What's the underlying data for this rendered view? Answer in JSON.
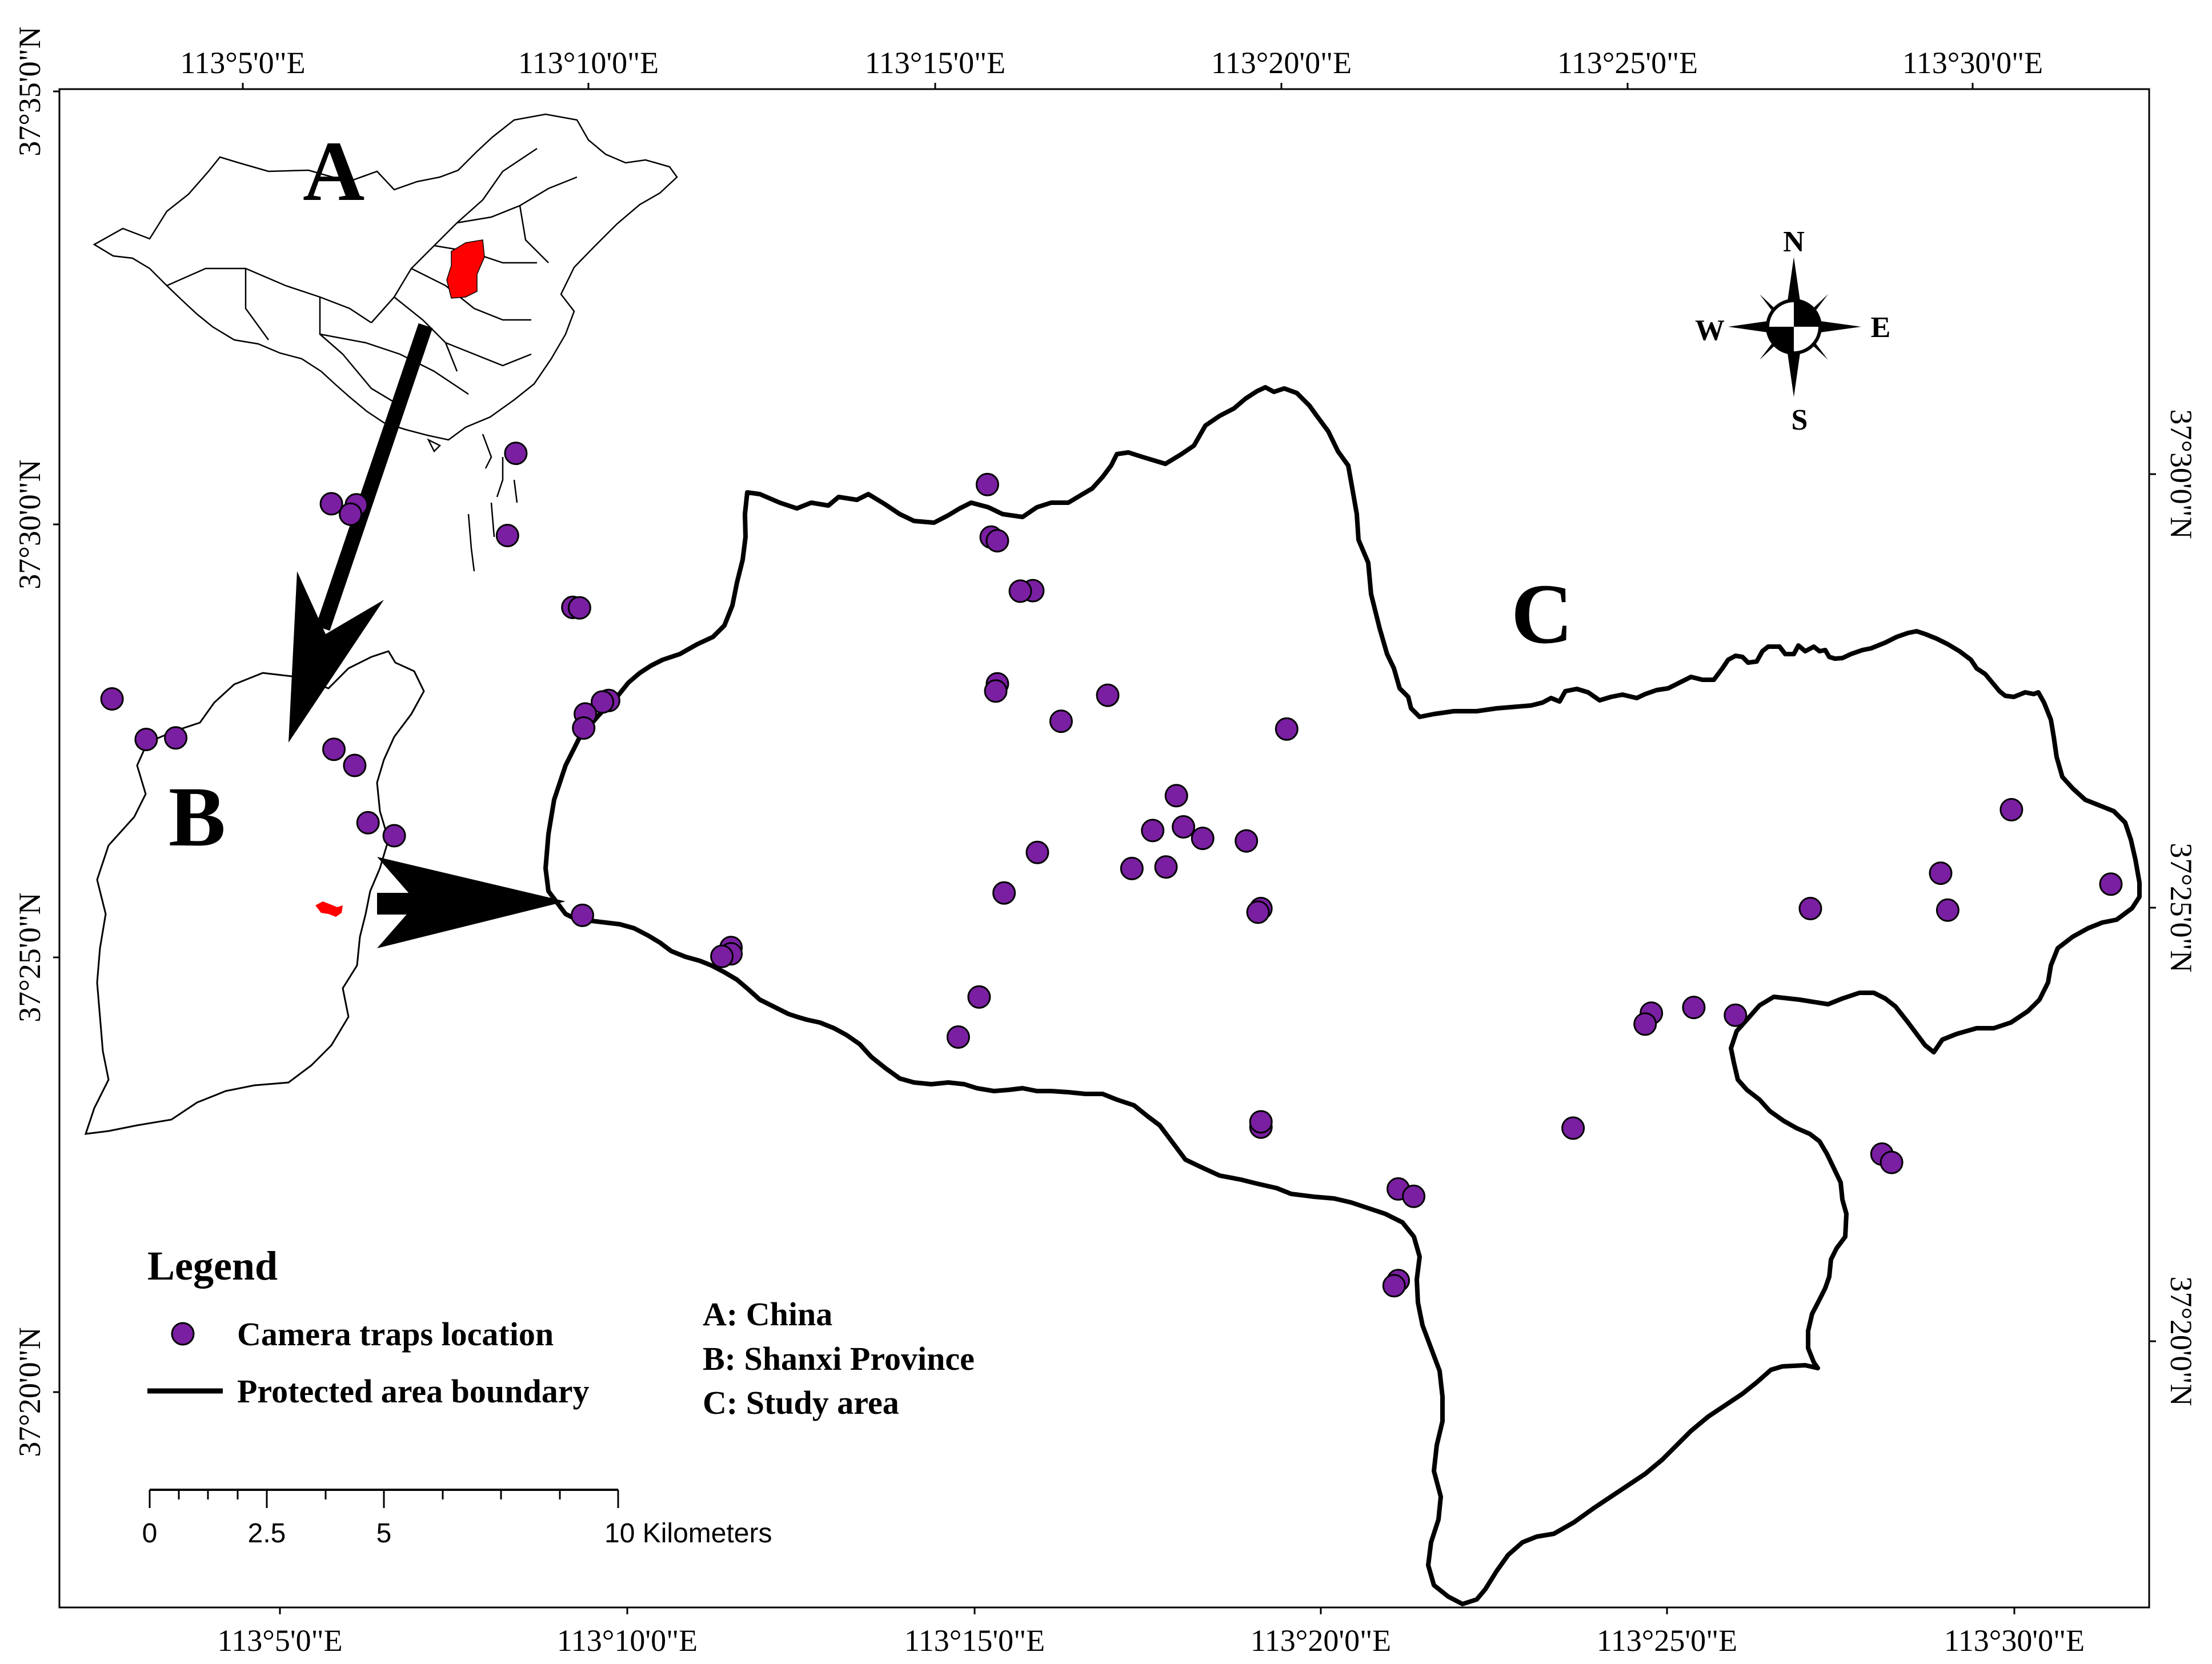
{
  "graticule": {
    "top": [
      "113°5'0\"E",
      "113°10'0\"E",
      "113°15'0\"E",
      "113°20'0\"E",
      "113°25'0\"E",
      "113°30'0\"E"
    ],
    "bottom": [
      "113°5'0\"E",
      "113°10'0\"E",
      "113°15'0\"E",
      "113°20'0\"E",
      "113°25'0\"E",
      "113°30'0\"E"
    ],
    "left": [
      "37°35'0\"N",
      "37°30'0\"N",
      "37°25'0\"N",
      "37°20'0\"N"
    ],
    "right": [
      "37°30'0\"N",
      "37°25'0\"N",
      "37°20'0\"N"
    ]
  },
  "labels": {
    "a": "A",
    "b": "B",
    "c": "C"
  },
  "compass": {
    "n": "N",
    "s": "S",
    "e": "E",
    "w": "W"
  },
  "legend": {
    "title": "Legend",
    "camera": "Camera traps location",
    "boundary": "Protected area boundary"
  },
  "key": {
    "a": "A: China",
    "b": "B: Shanxi Province",
    "c": "C: Study area"
  },
  "scalebar": {
    "t0": "0",
    "t1": "2.5",
    "t2": "5",
    "t3": "10 Kilometers"
  },
  "colors": {
    "highlight": "#ff0000",
    "camera": "#7a1fa2",
    "boundary": "#000000"
  },
  "camera_traps": [
    [
      113.14,
      37.504
    ],
    [
      113.2533,
      37.498
    ],
    [
      113.0957,
      37.4943
    ],
    [
      113.1017,
      37.4941
    ],
    [
      113.1003,
      37.4923
    ],
    [
      113.138,
      37.4882
    ],
    [
      113.2542,
      37.4879
    ],
    [
      113.2557,
      37.4872
    ],
    [
      113.2642,
      37.4776
    ],
    [
      113.2612,
      37.4775
    ],
    [
      113.1537,
      37.4744
    ],
    [
      113.1553,
      37.4743
    ],
    [
      113.2557,
      37.4597
    ],
    [
      113.2553,
      37.4583
    ],
    [
      113.2822,
      37.4575
    ],
    [
      113.043,
      37.4568
    ],
    [
      113.1623,
      37.4565
    ],
    [
      113.1608,
      37.4562
    ],
    [
      113.1567,
      37.4539
    ],
    [
      113.1563,
      37.4512
    ],
    [
      113.271,
      37.4525
    ],
    [
      113.3252,
      37.451
    ],
    [
      113.0512,
      37.449
    ],
    [
      113.0583,
      37.4493
    ],
    [
      113.0963,
      37.4471
    ],
    [
      113.1013,
      37.444
    ],
    [
      113.2987,
      37.4382
    ],
    [
      113.4993,
      37.4355
    ],
    [
      113.3004,
      37.4322
    ],
    [
      113.1045,
      37.433
    ],
    [
      113.1108,
      37.4305
    ],
    [
      113.293,
      37.4315
    ],
    [
      113.305,
      37.43
    ],
    [
      113.3155,
      37.4295
    ],
    [
      113.2653,
      37.4273
    ],
    [
      113.2962,
      37.4245
    ],
    [
      113.288,
      37.4242
    ],
    [
      113.2573,
      37.4195
    ],
    [
      113.4823,
      37.4233
    ],
    [
      113.5232,
      37.4212
    ],
    [
      113.319,
      37.4165
    ],
    [
      113.3183,
      37.4158
    ],
    [
      113.451,
      37.4165
    ],
    [
      113.484,
      37.4162
    ],
    [
      113.156,
      37.4152
    ],
    [
      113.1917,
      37.409
    ],
    [
      113.1917,
      37.4078
    ],
    [
      113.1895,
      37.4073
    ],
    [
      113.2513,
      37.3995
    ],
    [
      113.423,
      37.3975
    ],
    [
      113.4128,
      37.3964
    ],
    [
      113.433,
      37.396
    ],
    [
      113.4113,
      37.3943
    ],
    [
      113.2463,
      37.3918
    ],
    [
      113.319,
      37.3745
    ],
    [
      113.319,
      37.3755
    ],
    [
      113.394,
      37.3743
    ],
    [
      113.4682,
      37.3693
    ],
    [
      113.4705,
      37.3677
    ],
    [
      113.352,
      37.3626
    ],
    [
      113.3557,
      37.3612
    ],
    [
      113.352,
      37.345
    ],
    [
      113.351,
      37.344
    ]
  ]
}
